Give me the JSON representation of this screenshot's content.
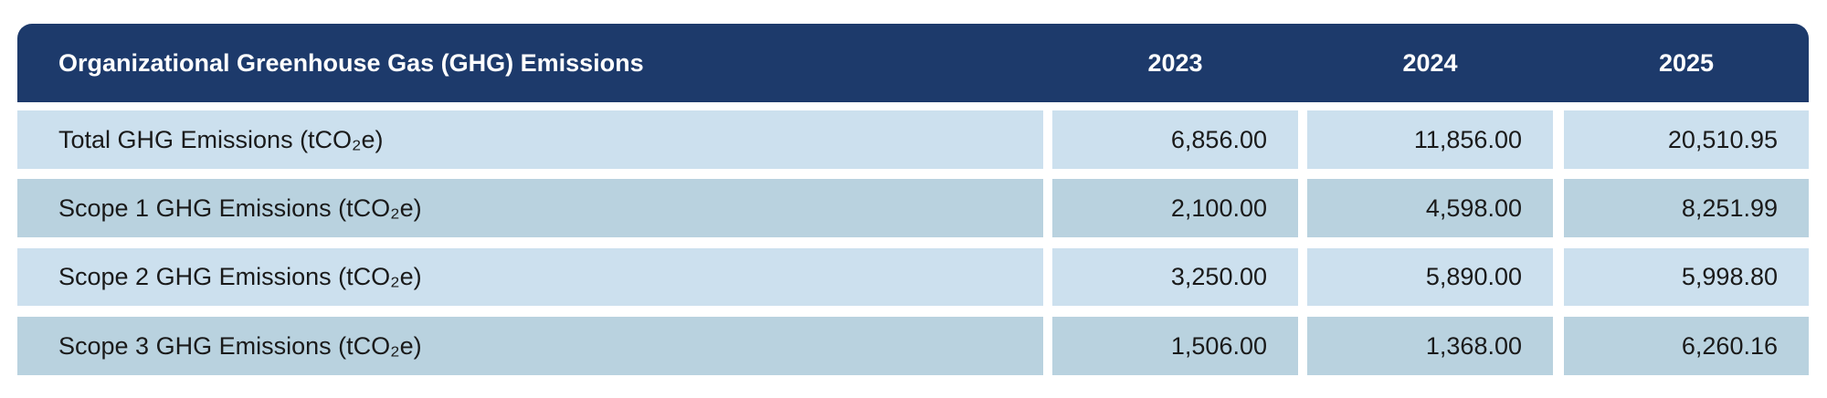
{
  "table": {
    "header": [
      "Organizational Greenhouse Gas (GHG) Emissions",
      "2023",
      "2024",
      "2025"
    ],
    "rows": [
      [
        "Total GHG Emissions (tCO₂e)",
        "6,856.00",
        "11,856.00",
        "20,510.95"
      ],
      [
        "Scope 1 GHG Emissions (tCO₂e)",
        "2,100.00",
        "4,598.00",
        "8,251.99"
      ],
      [
        "Scope 2 GHG Emissions (tCO₂e)",
        "3,250.00",
        "5,890.00",
        "5,998.80"
      ],
      [
        "Scope 3 GHG Emissions (tCO₂e)",
        "1,506.00",
        "1,368.00",
        "6,260.16"
      ]
    ]
  }
}
